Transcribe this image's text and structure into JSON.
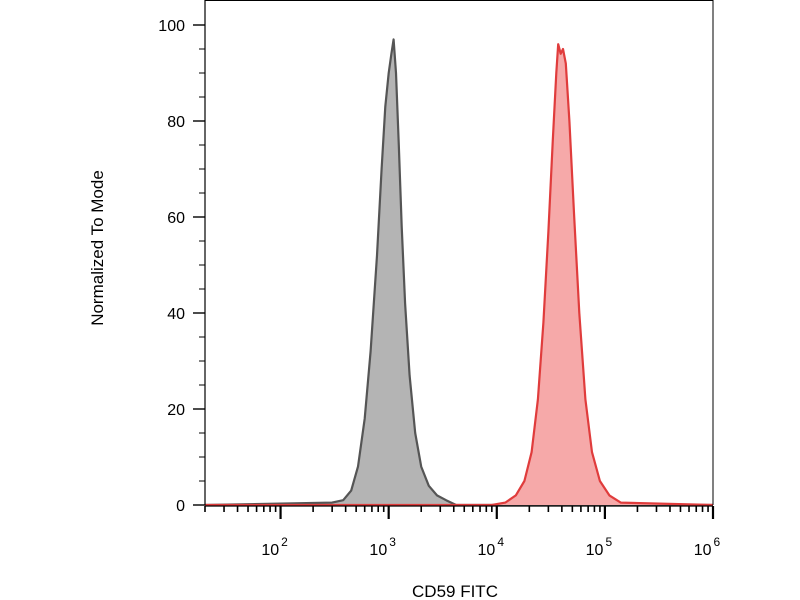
{
  "chart_data": {
    "type": "area",
    "xlabel": "CD59 FITC",
    "ylabel": "Normalized To Mode",
    "x_scale": "log",
    "xlim": [
      20,
      1000000
    ],
    "ylim": [
      0,
      100
    ],
    "y_ticks": [
      "0",
      "20",
      "40",
      "60",
      "80",
      "100"
    ],
    "x_ticks": [
      {
        "value": 100,
        "base": "10",
        "exp": "2"
      },
      {
        "value": 1000,
        "base": "10",
        "exp": "3"
      },
      {
        "value": 10000,
        "base": "10",
        "exp": "4"
      },
      {
        "value": 100000,
        "base": "10",
        "exp": "5"
      },
      {
        "value": 1000000,
        "base": "10",
        "exp": "6"
      }
    ],
    "grid": false,
    "legend": "none",
    "series": [
      {
        "color": "#555555",
        "fill": "#b4b4b4",
        "x": [
          20,
          300,
          380,
          450,
          520,
          600,
          680,
          780,
          860,
          930,
          1000,
          1060,
          1110,
          1170,
          1240,
          1320,
          1420,
          1560,
          1760,
          2000,
          2350,
          2800,
          3400,
          4200,
          1000000
        ],
        "y": [
          0,
          0.5,
          1,
          3,
          8,
          18,
          32,
          52,
          70,
          83,
          90,
          94,
          97,
          90,
          75,
          58,
          42,
          27,
          15,
          8,
          4,
          2,
          1,
          0,
          0
        ]
      },
      {
        "color": "#e03c3c",
        "fill": "#f6a9a9",
        "x": [
          20,
          9000,
          12000,
          15000,
          18000,
          21000,
          24000,
          27000,
          30000,
          33000,
          35500,
          37000,
          39000,
          41000,
          43500,
          47000,
          52000,
          58000,
          66000,
          76000,
          90000,
          110000,
          140000,
          1000000
        ],
        "y": [
          0,
          0,
          0.5,
          2,
          5,
          11,
          22,
          38,
          57,
          76,
          90,
          96,
          94,
          95,
          92,
          80,
          60,
          40,
          22,
          11,
          5,
          2,
          0.5,
          0
        ]
      }
    ]
  }
}
